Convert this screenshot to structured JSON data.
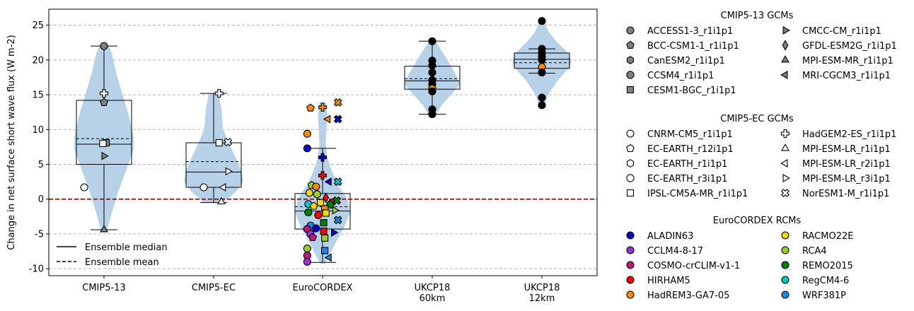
{
  "chart_data": {
    "type": "violin-box-scatter",
    "ylabel": "Change in net surface short wave flux (W m-2)",
    "ylim": [
      -11,
      27.3
    ],
    "yticks": [
      -10,
      -5,
      0,
      5,
      10,
      15,
      20,
      25
    ],
    "grid": "horizontal dashed",
    "zero_line_color": "#aa0000",
    "violin_color": "#b7d1e8",
    "groups": [
      {
        "label": "CMIP5-13",
        "box": {
          "q1": 5.0,
          "median": 7.9,
          "q3": 14.2,
          "whisker_low": -4.4,
          "whisker_high": 22.0,
          "mean": 8.7
        },
        "violin": [
          [
            -4.4,
            0.2
          ],
          [
            -2,
            0.5
          ],
          [
            1,
            0.9
          ],
          [
            4,
            1.4
          ],
          [
            7,
            1.9
          ],
          [
            9,
            1.9
          ],
          [
            12,
            1.6
          ],
          [
            15,
            1.2
          ],
          [
            18,
            0.8
          ],
          [
            21,
            0.5
          ],
          [
            22,
            0.3
          ]
        ]
      },
      {
        "label": "CMIP5-EC",
        "box": {
          "q1": 1.7,
          "median": 3.9,
          "q3": 8.1,
          "whisker_low": -0.5,
          "whisker_high": 15.2,
          "mean": 5.4
        },
        "violin": [
          [
            -0.5,
            0.6
          ],
          [
            1,
            1.4
          ],
          [
            2.5,
            1.9
          ],
          [
            4,
            1.8
          ],
          [
            6,
            1.4
          ],
          [
            8,
            1.0
          ],
          [
            10,
            0.6
          ],
          [
            13,
            0.5
          ],
          [
            15.2,
            0.3
          ]
        ]
      },
      {
        "label": "EuroCORDEX",
        "box": {
          "q1": -4.3,
          "median": -1.7,
          "q3": 0.8,
          "whisker_low": -9.1,
          "whisker_high": 7.3,
          "mean": -1.1
        },
        "violin": [
          [
            -9.3,
            0.15
          ],
          [
            -8,
            0.45
          ],
          [
            -6,
            0.9
          ],
          [
            -4,
            1.4
          ],
          [
            -2,
            1.75
          ],
          [
            0,
            1.6
          ],
          [
            2,
            1.0
          ],
          [
            4,
            0.6
          ],
          [
            6,
            0.3
          ],
          [
            8,
            0.2
          ],
          [
            10,
            0.25
          ],
          [
            12,
            0.3
          ],
          [
            14,
            0.2
          ]
        ]
      },
      {
        "label": "UKCP18\n60km",
        "box": {
          "q1": 15.8,
          "median": 17.0,
          "q3": 19.1,
          "whisker_low": 12.2,
          "whisker_high": 22.7,
          "mean": 17.3
        },
        "violin": [
          [
            12,
            0.2
          ],
          [
            13.5,
            0.6
          ],
          [
            15,
            1.2
          ],
          [
            16.5,
            1.8
          ],
          [
            18,
            1.5
          ],
          [
            19.5,
            1.1
          ],
          [
            21,
            0.7
          ],
          [
            22.7,
            0.2
          ]
        ]
      },
      {
        "label": "UKCP18\n12km",
        "box": {
          "q1": 18.8,
          "median": 20.1,
          "q3": 21.0,
          "whisker_low": 18.1,
          "whisker_high": 21.6,
          "mean": 19.6
        },
        "violin": [
          [
            13.5,
            0.2
          ],
          [
            15,
            0.4
          ],
          [
            17,
            1.0
          ],
          [
            19,
            1.8
          ],
          [
            20,
            1.9
          ],
          [
            21,
            1.7
          ],
          [
            22.5,
            1.0
          ],
          [
            24,
            0.45
          ],
          [
            25.5,
            0.15
          ]
        ]
      }
    ],
    "legend_lines": [
      {
        "label": "Ensemble median",
        "style": "solid"
      },
      {
        "label": "Ensemble mean",
        "style": "dashed"
      }
    ],
    "legend_sections": [
      {
        "title": "CMIP5-13 GCMs",
        "items": [
          {
            "label": "ACCESS1-3_r1i1p1",
            "marker": "circle",
            "fill": "#808080"
          },
          {
            "label": "BCC-CSM1-1_r1i1p1",
            "marker": "pentagon",
            "fill": "#808080"
          },
          {
            "label": "CanESM2_r1i1p1",
            "marker": "hexagon",
            "fill": "#808080"
          },
          {
            "label": "CCSM4_r1i1p1",
            "marker": "octagon",
            "fill": "#808080"
          },
          {
            "label": "CESM1-BGC_r1i1p1",
            "marker": "square",
            "fill": "#808080"
          },
          {
            "label": "CMCC-CM_r1i1p1",
            "marker": "tri-right",
            "fill": "#808080"
          },
          {
            "label": "GFDL-ESM2G_r1i1p1",
            "marker": "diamond",
            "fill": "#808080"
          },
          {
            "label": "MPI-ESM-MR_r1i1p1",
            "marker": "tri-up",
            "fill": "#808080"
          },
          {
            "label": "MRI-CGCM3_r1i1p1",
            "marker": "tri-left",
            "fill": "#808080"
          }
        ]
      },
      {
        "title": "CMIP5-EC GCMs",
        "items": [
          {
            "label": "CNRM-CM5_r1i1p1",
            "marker": "circle",
            "fill": "#ffffff"
          },
          {
            "label": "EC-EARTH_r12i1p1",
            "marker": "pentagon",
            "fill": "#ffffff"
          },
          {
            "label": "EC-EARTH_r1i1p1",
            "marker": "hexagon",
            "fill": "#ffffff"
          },
          {
            "label": "EC-EARTH_r3i1p1",
            "marker": "octagon",
            "fill": "#ffffff"
          },
          {
            "label": "IPSL-CM5A-MR_r1i1p1",
            "marker": "square",
            "fill": "#ffffff"
          },
          {
            "label": "HadGEM2-ES_r1i1p1",
            "marker": "plus",
            "fill": "#ffffff"
          },
          {
            "label": "MPI-ESM-LR_r1i1p1",
            "marker": "tri-up",
            "fill": "#ffffff"
          },
          {
            "label": "MPI-ESM-LR_r2i1p1",
            "marker": "tri-left",
            "fill": "#ffffff"
          },
          {
            "label": "MPI-ESM-LR_r3i1p1",
            "marker": "tri-right",
            "fill": "#ffffff"
          },
          {
            "label": "NorESM1-M_r1i1p1",
            "marker": "x",
            "fill": "#ffffff"
          }
        ]
      },
      {
        "title": "EuroCORDEX RCMs",
        "items": [
          {
            "label": "ALADIN63",
            "marker": "circle",
            "fill": "#0000c8"
          },
          {
            "label": "CCLM4-8-17",
            "marker": "circle",
            "fill": "#9b30d8"
          },
          {
            "label": "COSMO-crCLIM-v1-1",
            "marker": "circle",
            "fill": "#c0187a"
          },
          {
            "label": "HIRHAM5",
            "marker": "circle",
            "fill": "#ff0000"
          },
          {
            "label": "HadREM3-GA7-05",
            "marker": "circle",
            "fill": "#ff8c00"
          },
          {
            "label": "RACMO22E",
            "marker": "circle",
            "fill": "#ffd700"
          },
          {
            "label": "RCA4",
            "marker": "circle",
            "fill": "#9acd32"
          },
          {
            "label": "REMO2015",
            "marker": "circle",
            "fill": "#008000"
          },
          {
            "label": "RegCM4-6",
            "marker": "circle",
            "fill": "#00c8c8"
          },
          {
            "label": "WRF381P",
            "marker": "circle",
            "fill": "#1e88e5"
          }
        ]
      }
    ],
    "points": [
      {
        "g": 0,
        "dx": 0,
        "y": 22.0,
        "m": "circle",
        "f": "#808080"
      },
      {
        "g": 0,
        "dx": 0,
        "y": 15.2,
        "m": "plus",
        "f": "#ffffff"
      },
      {
        "g": 0,
        "dx": 0,
        "y": 13.9,
        "m": "pentagon",
        "f": "#808080"
      },
      {
        "g": 0,
        "dx": 0.02,
        "y": 8.1,
        "m": "square",
        "f": "#808080"
      },
      {
        "g": 0,
        "dx": -0.01,
        "y": 8.0,
        "m": "square",
        "f": "#ffffff"
      },
      {
        "g": 0,
        "dx": 0,
        "y": 6.2,
        "m": "tri-right",
        "f": "#808080"
      },
      {
        "g": 0,
        "dx": -0.18,
        "y": 1.7,
        "m": "circle",
        "f": "#ffffff"
      },
      {
        "g": 0,
        "dx": 0,
        "y": -4.4,
        "m": "tri-up",
        "f": "#808080"
      },
      {
        "g": 1,
        "dx": 0.05,
        "y": 15.2,
        "m": "plus",
        "f": "#ffffff"
      },
      {
        "g": 1,
        "dx": 0.13,
        "y": 8.2,
        "m": "x",
        "f": "#ffffff"
      },
      {
        "g": 1,
        "dx": 0.05,
        "y": 8.1,
        "m": "square",
        "f": "#ffffff"
      },
      {
        "g": 1,
        "dx": 0.13,
        "y": 4.0,
        "m": "tri-right",
        "f": "#ffffff"
      },
      {
        "g": 1,
        "dx": -0.09,
        "y": 1.7,
        "m": "circle",
        "f": "#ffffff"
      },
      {
        "g": 1,
        "dx": 0.09,
        "y": 1.7,
        "m": "tri-left",
        "f": "#ffffff"
      },
      {
        "g": 1,
        "dx": 0.07,
        "y": -0.4,
        "m": "tri-up",
        "f": "#ffffff"
      },
      {
        "g": 2,
        "dx": 0.0,
        "y": 13.2,
        "m": "plus",
        "f": "#ff8c00"
      },
      {
        "g": 2,
        "dx": -0.11,
        "y": 13.1,
        "m": "pentagon",
        "f": "#ff8c00"
      },
      {
        "g": 2,
        "dx": 0.14,
        "y": 13.9,
        "m": "x",
        "f": "#ff8c00"
      },
      {
        "g": 2,
        "dx": 0.05,
        "y": 11.5,
        "m": "tri-left",
        "f": "#ff8c00"
      },
      {
        "g": 2,
        "dx": 0.14,
        "y": 11.5,
        "m": "x",
        "f": "#0000c8"
      },
      {
        "g": 2,
        "dx": -0.14,
        "y": 9.4,
        "m": "circle",
        "f": "#ff8c00"
      },
      {
        "g": 2,
        "dx": -0.14,
        "y": 7.3,
        "m": "circle",
        "f": "#0000c8"
      },
      {
        "g": 2,
        "dx": 0.0,
        "y": 6.0,
        "m": "plus",
        "f": "#0000c8"
      },
      {
        "g": 2,
        "dx": 0.0,
        "y": 3.4,
        "m": "plus",
        "f": "#ff0000"
      },
      {
        "g": 2,
        "dx": 0.06,
        "y": 2.5,
        "m": "tri-left",
        "f": "#0000c8"
      },
      {
        "g": 2,
        "dx": 0.14,
        "y": 2.5,
        "m": "x",
        "f": "#00c8c8"
      },
      {
        "g": 2,
        "dx": -0.1,
        "y": 2.0,
        "m": "pentagon",
        "f": "#9acd32"
      },
      {
        "g": 2,
        "dx": -0.06,
        "y": 1.8,
        "m": "circle",
        "f": "#ff8c00"
      },
      {
        "g": 2,
        "dx": -0.12,
        "y": 0.9,
        "m": "circle",
        "f": "#ffd700"
      },
      {
        "g": 2,
        "dx": -0.05,
        "y": 0.7,
        "m": "circle",
        "f": "#9acd32"
      },
      {
        "g": 2,
        "dx": 0.03,
        "y": 0.2,
        "m": "diamond",
        "f": "#ff0000"
      },
      {
        "g": 2,
        "dx": 0.09,
        "y": -0.3,
        "m": "tri-left",
        "f": "#ff0000"
      },
      {
        "g": 2,
        "dx": 0.13,
        "y": -0.2,
        "m": "x",
        "f": "#008000"
      },
      {
        "g": 2,
        "dx": -0.02,
        "y": -0.5,
        "m": "square",
        "f": "#ffd700"
      },
      {
        "g": 2,
        "dx": -0.13,
        "y": -0.7,
        "m": "circle",
        "f": "#00c8c8"
      },
      {
        "g": 2,
        "dx": 0.07,
        "y": -0.8,
        "m": "circle",
        "f": "#008000"
      },
      {
        "g": 2,
        "dx": -0.08,
        "y": -1.0,
        "m": "pentagon",
        "f": "#ffd700"
      },
      {
        "g": 2,
        "dx": 0.02,
        "y": -1.4,
        "m": "square",
        "f": "#ff8c00"
      },
      {
        "g": 2,
        "dx": 0.11,
        "y": -1.6,
        "m": "tri-right",
        "f": "#9acd32"
      },
      {
        "g": 2,
        "dx": -0.13,
        "y": -1.9,
        "m": "circle",
        "f": "#008000"
      },
      {
        "g": 2,
        "dx": 0.03,
        "y": -2.0,
        "m": "square",
        "f": "#ffd700"
      },
      {
        "g": 2,
        "dx": -0.04,
        "y": -2.3,
        "m": "circle",
        "f": "#ff0000"
      },
      {
        "g": 2,
        "dx": 0.14,
        "y": -3.0,
        "m": "x",
        "f": "#1e88e5"
      },
      {
        "g": 2,
        "dx": 0.01,
        "y": -3.4,
        "m": "square",
        "f": "#008000"
      },
      {
        "g": 2,
        "dx": -0.11,
        "y": -3.8,
        "m": "circle",
        "f": "#1e88e5"
      },
      {
        "g": 2,
        "dx": -0.14,
        "y": -4.3,
        "m": "circle",
        "f": "#c0187a"
      },
      {
        "g": 2,
        "dx": -0.06,
        "y": -4.2,
        "m": "circle",
        "f": "#0000c8"
      },
      {
        "g": 2,
        "dx": 0.01,
        "y": -4.6,
        "m": "square",
        "f": "#ff0000"
      },
      {
        "g": 2,
        "dx": 0.1,
        "y": -4.8,
        "m": "tri-right",
        "f": "#0000c8"
      },
      {
        "g": 2,
        "dx": -0.11,
        "y": -5.0,
        "m": "circle",
        "f": "#9b30d8"
      },
      {
        "g": 2,
        "dx": -0.09,
        "y": -5.5,
        "m": "pentagon",
        "f": "#c0187a"
      },
      {
        "g": 2,
        "dx": 0.02,
        "y": -5.6,
        "m": "square",
        "f": "#9acd32"
      },
      {
        "g": 2,
        "dx": -0.14,
        "y": -7.1,
        "m": "circle",
        "f": "#9acd32"
      },
      {
        "g": 2,
        "dx": 0.02,
        "y": -7.4,
        "m": "square",
        "f": "#1e88e5"
      },
      {
        "g": 2,
        "dx": -0.14,
        "y": -8.1,
        "m": "circle",
        "f": "#c0187a"
      },
      {
        "g": 2,
        "dx": 0.06,
        "y": -8.4,
        "m": "tri-left",
        "f": "#1e88e5"
      },
      {
        "g": 2,
        "dx": -0.14,
        "y": -9.0,
        "m": "circle",
        "f": "#9b30d8"
      },
      {
        "g": 3,
        "dx": 0,
        "y": 22.7,
        "m": "circle",
        "f": "#000000"
      },
      {
        "g": 3,
        "dx": 0,
        "y": 19.9,
        "m": "circle",
        "f": "#000000"
      },
      {
        "g": 3,
        "dx": 0,
        "y": 19.2,
        "m": "circle",
        "f": "#000000"
      },
      {
        "g": 3,
        "dx": 0,
        "y": 18.2,
        "m": "circle",
        "f": "#000000"
      },
      {
        "g": 3,
        "dx": 0,
        "y": 17.1,
        "m": "circle",
        "f": "#000000"
      },
      {
        "g": 3,
        "dx": 0,
        "y": 16.5,
        "m": "circle",
        "f": "#000000"
      },
      {
        "g": 3,
        "dx": 0,
        "y": 15.9,
        "m": "circle",
        "f": "#ff8c00"
      },
      {
        "g": 3,
        "dx": 0,
        "y": 15.5,
        "m": "circle",
        "f": "#000000"
      },
      {
        "g": 3,
        "dx": 0,
        "y": 12.9,
        "m": "circle",
        "f": "#000000"
      },
      {
        "g": 3,
        "dx": 0,
        "y": 12.2,
        "m": "circle",
        "f": "#000000"
      },
      {
        "g": 4,
        "dx": 0,
        "y": 25.6,
        "m": "circle",
        "f": "#000000"
      },
      {
        "g": 4,
        "dx": 0,
        "y": 21.6,
        "m": "circle",
        "f": "#000000"
      },
      {
        "g": 4,
        "dx": 0,
        "y": 21.0,
        "m": "circle",
        "f": "#000000"
      },
      {
        "g": 4,
        "dx": 0,
        "y": 20.5,
        "m": "circle",
        "f": "#000000"
      },
      {
        "g": 4,
        "dx": 0,
        "y": 20.0,
        "m": "circle",
        "f": "#000000"
      },
      {
        "g": 4,
        "dx": 0,
        "y": 19.0,
        "m": "circle",
        "f": "#ff8c00"
      },
      {
        "g": 4,
        "dx": 0,
        "y": 18.2,
        "m": "circle",
        "f": "#000000"
      },
      {
        "g": 4,
        "dx": 0,
        "y": 14.6,
        "m": "circle",
        "f": "#000000"
      },
      {
        "g": 4,
        "dx": 0,
        "y": 13.5,
        "m": "circle",
        "f": "#000000"
      }
    ]
  }
}
